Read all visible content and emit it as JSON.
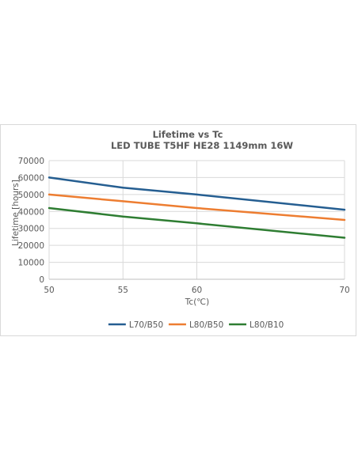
{
  "chart_data": {
    "type": "line",
    "title": "Lifetime vs Tc",
    "subtitle": "LED TUBE T5HF HE28 1149mm 16W",
    "xlabel": "Tc(℃)",
    "ylabel": "Lifetime [hours]",
    "x": [
      50,
      55,
      60,
      70
    ],
    "xlim": [
      50,
      70
    ],
    "ylim": [
      0,
      70000
    ],
    "yticks": [
      0,
      10000,
      20000,
      30000,
      40000,
      50000,
      60000,
      70000
    ],
    "xticks": [
      50,
      55,
      60,
      70
    ],
    "grid": true,
    "legend_position": "bottom",
    "series": [
      {
        "name": "L70/B50",
        "color": "#255e91",
        "values": [
          60000,
          54000,
          50000,
          41000
        ]
      },
      {
        "name": "L80/B50",
        "color": "#ed7d31",
        "values": [
          50000,
          46000,
          42000,
          35000
        ]
      },
      {
        "name": "L80/B10",
        "color": "#2e7d32",
        "values": [
          42000,
          37000,
          33000,
          24500
        ]
      }
    ]
  }
}
